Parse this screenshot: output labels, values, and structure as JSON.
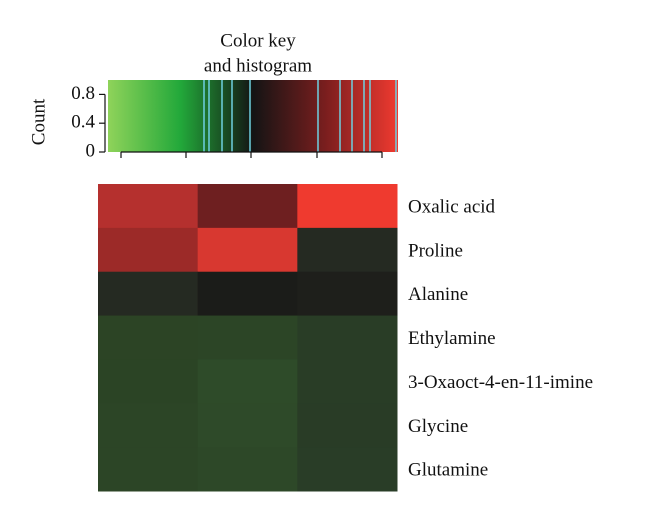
{
  "chart_data": {
    "type": "heatmap",
    "title": [
      "Color key",
      "and histogram"
    ],
    "key_ylabel": "Count",
    "key_ylim": [
      0,
      1
    ],
    "key_yticks": [
      0,
      0.4,
      0.8
    ],
    "key_colors": [
      "#8fd35a",
      "#22a83a",
      "#141414",
      "#7a1e1e",
      "#f03a30"
    ],
    "rows": [
      "Oxalic acid",
      "Proline",
      "Alanine",
      "Ethylamine",
      "3-Oxaoct-4-en-11-imine",
      "Glycine",
      "Glutamine"
    ],
    "cell_colors": [
      [
        "#b5302e",
        "#6e1f20",
        "#ef3a2f"
      ],
      [
        "#9c2a28",
        "#d83830",
        "#252a22"
      ],
      [
        "#252a22",
        "#1b1c19",
        "#1e1f1b"
      ],
      [
        "#2c4425",
        "#2c4526",
        "#293d26"
      ],
      [
        "#2b4425",
        "#2e4b29",
        "#293d26"
      ],
      [
        "#2c4526",
        "#2e4a29",
        "#293c26"
      ],
      [
        "#2c4526",
        "#2d4828",
        "#293d27"
      ]
    ]
  }
}
